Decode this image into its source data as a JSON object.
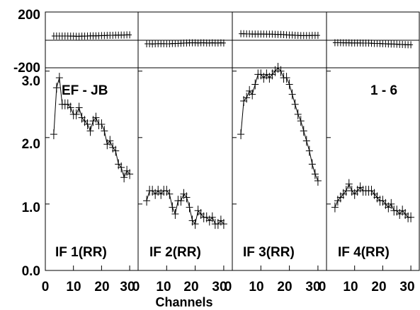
{
  "chart_data": {
    "type": "line",
    "xlabel": "Channels",
    "top_tick_labels": [
      "200",
      "-200"
    ],
    "corner_labels": [
      "EF - JB",
      "1 - 6"
    ],
    "x_ticks": [
      0,
      10,
      20,
      30
    ],
    "x_tick_labels": [
      "0",
      "10",
      "20",
      "30",
      "0",
      "10",
      "20",
      "30",
      "0",
      "10",
      "20",
      "30",
      "0",
      "10",
      "20",
      "30"
    ],
    "y_ticks": [
      0.0,
      1.0,
      2.0,
      3.0
    ],
    "y_tick_labels": [
      "0.0",
      "1.0",
      "2.0",
      "3.0"
    ],
    "xlim": [
      0,
      33
    ],
    "ylim": [
      0,
      3.05
    ],
    "phase_ylim": [
      -200,
      200
    ],
    "panels": [
      {
        "label": "IF 1(RR)",
        "x": [
          3,
          4,
          5,
          6,
          7,
          8,
          9,
          10,
          11,
          12,
          13,
          14,
          15,
          16,
          17,
          18,
          19,
          20,
          21,
          22,
          23,
          24,
          25,
          26,
          27,
          28,
          29,
          30
        ],
        "amplitude": [
          2.05,
          2.75,
          2.9,
          2.5,
          2.5,
          2.5,
          2.45,
          2.35,
          2.35,
          2.45,
          2.3,
          2.25,
          2.2,
          2.1,
          2.25,
          2.3,
          2.2,
          2.2,
          2.1,
          1.9,
          1.95,
          1.85,
          1.8,
          1.6,
          1.55,
          1.4,
          1.5,
          1.45
        ],
        "phase": [
          28,
          28,
          28,
          28,
          28,
          28,
          27,
          27,
          26,
          26,
          27,
          27,
          28,
          29,
          29,
          29,
          30,
          31,
          31,
          32,
          33,
          33,
          34,
          34,
          35,
          35,
          36,
          36
        ]
      },
      {
        "label": "IF 2(RR)",
        "x": [
          3,
          4,
          5,
          6,
          7,
          8,
          9,
          10,
          11,
          12,
          13,
          14,
          15,
          16,
          17,
          18,
          19,
          20,
          21,
          22,
          23,
          24,
          25,
          26,
          27,
          28,
          29,
          30
        ],
        "amplitude": [
          1.05,
          1.2,
          1.2,
          1.15,
          1.2,
          1.15,
          1.2,
          1.2,
          1.15,
          0.95,
          0.85,
          1.05,
          1.05,
          1.15,
          1.1,
          0.95,
          0.75,
          0.7,
          0.9,
          0.85,
          0.8,
          0.8,
          0.75,
          0.8,
          0.7,
          0.7,
          0.75,
          0.7
        ],
        "phase": [
          -28,
          -28,
          -29,
          -28,
          -27,
          -27,
          -27,
          -28,
          -28,
          -26,
          -26,
          -25,
          -24,
          -23,
          -22,
          -21,
          -21,
          -21,
          -22,
          -21,
          -21,
          -22,
          -22,
          -21,
          -22,
          -22,
          -21,
          -22
        ]
      },
      {
        "label": "IF 3(RR)",
        "x": [
          3,
          4,
          5,
          6,
          7,
          8,
          9,
          10,
          11,
          12,
          13,
          14,
          15,
          16,
          17,
          18,
          19,
          20,
          21,
          22,
          23,
          24,
          25,
          26,
          27,
          28,
          29,
          30
        ],
        "amplitude": [
          2.05,
          2.55,
          2.6,
          2.7,
          2.65,
          2.8,
          2.95,
          2.95,
          2.9,
          2.95,
          2.9,
          2.95,
          3.0,
          3.05,
          3.0,
          2.9,
          2.9,
          2.8,
          2.65,
          2.5,
          2.35,
          2.25,
          2.1,
          1.95,
          1.8,
          1.6,
          1.45,
          1.35
        ],
        "phase": [
          44,
          44,
          43,
          43,
          42,
          42,
          42,
          42,
          42,
          41,
          41,
          41,
          40,
          39,
          39,
          38,
          36,
          35,
          35,
          33,
          32,
          31,
          31,
          31,
          31,
          32,
          32,
          32
        ]
      },
      {
        "label": "IF 4(RR)",
        "x": [
          3,
          4,
          5,
          6,
          7,
          8,
          9,
          10,
          11,
          12,
          13,
          14,
          15,
          16,
          17,
          18,
          19,
          20,
          21,
          22,
          23,
          24,
          25,
          26,
          27,
          28,
          29,
          30
        ],
        "amplitude": [
          0.95,
          1.05,
          1.1,
          1.15,
          1.2,
          1.3,
          1.2,
          1.15,
          1.2,
          1.25,
          1.2,
          1.2,
          1.2,
          1.2,
          1.15,
          1.1,
          1.05,
          1.05,
          1.0,
          0.95,
          1.0,
          0.9,
          0.9,
          0.85,
          0.9,
          0.85,
          0.8,
          0.8
        ],
        "phase": [
          -20,
          -20,
          -20,
          -21,
          -21,
          -21,
          -22,
          -22,
          -22,
          -22,
          -23,
          -23,
          -23,
          -24,
          -25,
          -25,
          -26,
          -27,
          -28,
          -29,
          -30,
          -30,
          -31,
          -32,
          -33,
          -34,
          -35,
          -35
        ]
      }
    ]
  }
}
